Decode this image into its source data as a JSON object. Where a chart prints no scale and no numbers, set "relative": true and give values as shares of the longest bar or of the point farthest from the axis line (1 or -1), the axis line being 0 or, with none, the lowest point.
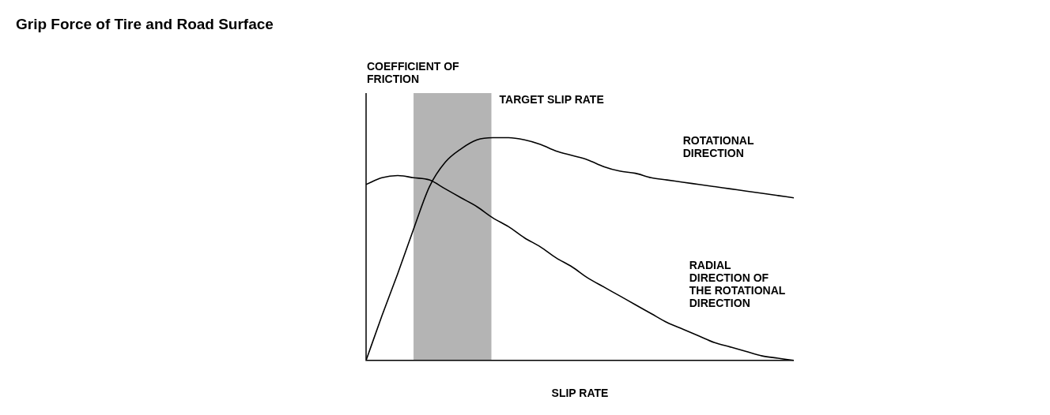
{
  "chart_data": {
    "type": "line",
    "title": "Grip Force of Tire and Road Surface",
    "xlabel": "SLIP RATE",
    "ylabel": "COEFFICIENT OF FRICTION",
    "relative": true,
    "marker": "none",
    "line_style": "solid",
    "categories": [
      null,
      null,
      null,
      null,
      null,
      null,
      null,
      null,
      null,
      null,
      null,
      null,
      null,
      null,
      null,
      null,
      null,
      null,
      null,
      null,
      null,
      null,
      null,
      null,
      null,
      null,
      null,
      null
    ],
    "series": [
      {
        "name": "ROTATIONAL DIRECTION",
        "color": "#000000",
        "values": [
          0,
          0.2,
          0.39,
          0.59,
          0.78,
          0.89,
          0.95,
          0.99,
          1,
          1,
          0.99,
          0.97,
          0.94,
          0.92,
          0.9,
          0.87,
          0.85,
          0.84,
          0.82,
          0.81,
          0.8,
          0.79,
          0.78,
          0.77,
          0.76,
          0.75,
          0.74,
          0.73
        ]
      },
      {
        "name": "RADIAL DIRECTION OF THE ROTATIONAL DIRECTION",
        "color": "#000000",
        "values": [
          0.79,
          0.82,
          0.83,
          0.82,
          0.81,
          0.77,
          0.73,
          0.69,
          0.64,
          0.6,
          0.55,
          0.51,
          0.46,
          0.42,
          0.37,
          0.33,
          0.29,
          0.25,
          0.21,
          0.17,
          0.14,
          0.11,
          0.08,
          0.06,
          0.04,
          0.02,
          0.01,
          0
        ]
      }
    ],
    "annotations": [
      "TARGET SLIP RATE"
    ]
  }
}
